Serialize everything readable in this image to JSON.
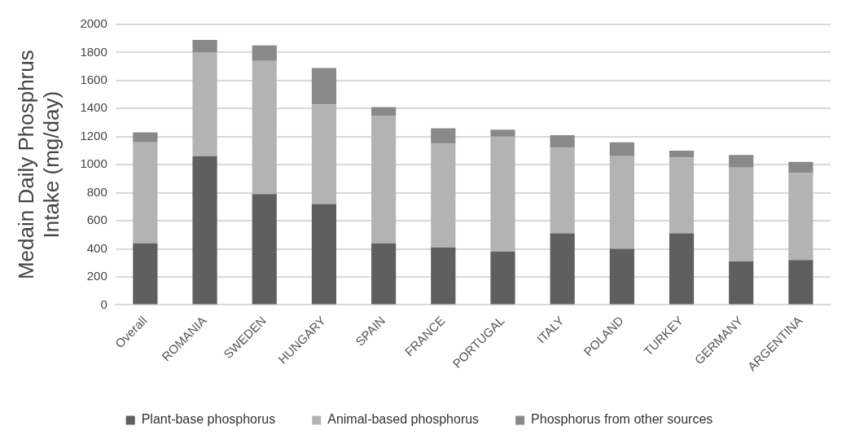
{
  "chart_data": {
    "type": "bar",
    "stacked": true,
    "ylabel": "Medain Daily Phosphrus Intake (mg/day)",
    "categories": [
      "Overall",
      "ROMANIA",
      "SWEDEN",
      "HUNGARY",
      "SPAIN",
      "FRANCE",
      "PORTUGAL",
      "ITALY",
      "POLAND",
      "TURKEY",
      "GERMANY",
      "ARGENTINA"
    ],
    "series": [
      {
        "name": "Plant-base phosphorus",
        "color": "#5f5f5f",
        "values": [
          440,
          1060,
          790,
          720,
          440,
          410,
          380,
          510,
          400,
          510,
          310,
          320
        ]
      },
      {
        "name": "Animal-based phosphorus",
        "color": "#b3b3b3",
        "values": [
          720,
          740,
          950,
          710,
          910,
          740,
          820,
          610,
          660,
          540,
          670,
          620
        ]
      },
      {
        "name": "Phosphorus from other sources",
        "color": "#898989",
        "values": [
          70,
          90,
          110,
          260,
          60,
          110,
          50,
          90,
          100,
          50,
          90,
          80
        ]
      }
    ],
    "ylim": [
      0,
      2000
    ],
    "yticks": [
      0,
      200,
      400,
      600,
      800,
      1000,
      1200,
      1400,
      1600,
      1800,
      2000
    ],
    "grid": "y",
    "legend": "bottom"
  }
}
